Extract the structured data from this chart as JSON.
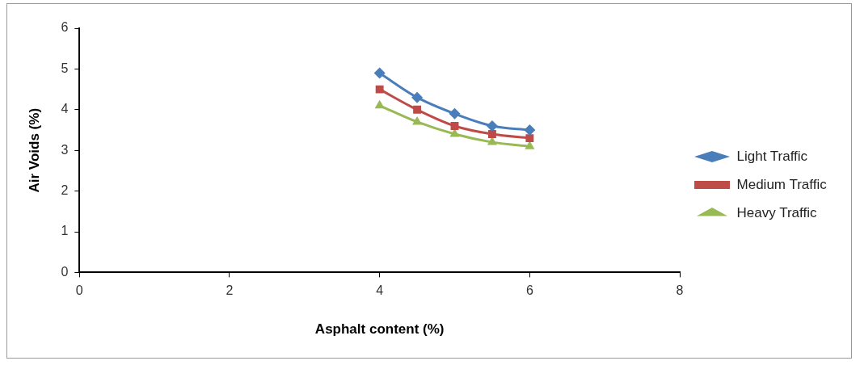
{
  "chart_data": {
    "type": "line",
    "xlabel": "Asphalt content (%)",
    "ylabel": "Air Voids (%)",
    "x": [
      4,
      4.5,
      5,
      5.5,
      6
    ],
    "xlim": [
      0,
      8
    ],
    "xticks": [
      0,
      2,
      4,
      6,
      8
    ],
    "ylim": [
      0,
      6
    ],
    "yticks": [
      0,
      1,
      2,
      3,
      4,
      5,
      6
    ],
    "grid": false,
    "legend": "right",
    "series": [
      {
        "name": "Light Traffic",
        "color": "#4a7ebb",
        "marker": "diamond",
        "values": [
          4.9,
          4.3,
          3.9,
          3.6,
          3.5
        ]
      },
      {
        "name": "Medium Traffic",
        "color": "#be4b48",
        "marker": "square",
        "values": [
          4.5,
          4.0,
          3.6,
          3.4,
          3.3
        ]
      },
      {
        "name": "Heavy Traffic",
        "color": "#98b954",
        "marker": "triangle",
        "values": [
          4.1,
          3.7,
          3.4,
          3.2,
          3.1
        ]
      }
    ]
  }
}
